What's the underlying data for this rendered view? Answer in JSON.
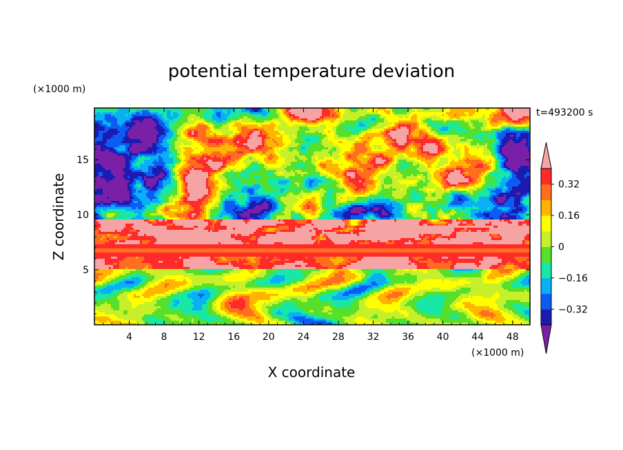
{
  "chart_data": {
    "type": "heatmap",
    "title": "potential temperature deviation",
    "xlabel": "X coordinate",
    "ylabel": "Z coordinate",
    "x_unit": "(×1000 m)",
    "y_unit": "(×1000 m)",
    "time_label": "t=493200 s",
    "xlim": [
      0,
      50
    ],
    "ylim": [
      0,
      19.7
    ],
    "x_ticks": [
      4,
      8,
      12,
      16,
      20,
      24,
      28,
      32,
      36,
      40,
      44,
      48
    ],
    "y_ticks": [
      5,
      10,
      15
    ],
    "colorbar": {
      "labels": [
        {
          "value": 0.32,
          "text": "0.32"
        },
        {
          "value": 0.16,
          "text": "0.16"
        },
        {
          "value": 0,
          "text": "0"
        },
        {
          "value": -0.16,
          "text": "−0.16"
        },
        {
          "value": -0.32,
          "text": "−0.32"
        }
      ],
      "levels": [
        -0.4,
        -0.32,
        -0.24,
        -0.16,
        -0.08,
        0,
        0.08,
        0.16,
        0.24,
        0.32,
        0.4
      ],
      "colors": [
        "#7a1fa8",
        "#1c1ab0",
        "#0a5cf2",
        "#09b0f5",
        "#17e8a8",
        "#56e02a",
        "#c8f02a",
        "#ffff00",
        "#ffb400",
        "#ff6d1f",
        "#ff2a2a",
        "#f5a3a3"
      ],
      "extend": "both"
    },
    "field_features": {
      "upper_layer_clouds": "warm (pink) and cold (purple) blobs between z=10 and z=19.7",
      "inversion_band_z": [
        6.2,
        7.3
      ],
      "lower_layer": "convective eddies z=0 to 5"
    }
  }
}
